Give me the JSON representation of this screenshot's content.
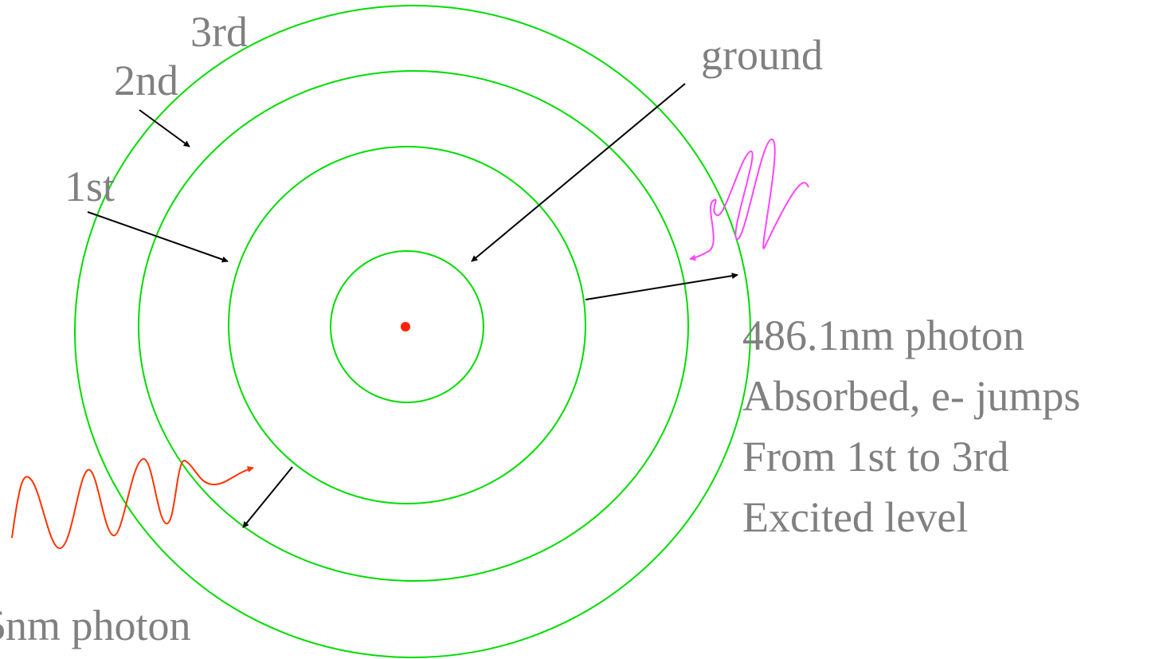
{
  "labels": {
    "third": "3rd",
    "second": "2nd",
    "first": "1st",
    "ground": "ground",
    "bottom_photon": "5nm photon"
  },
  "absorption_text": [
    "486.1nm photon",
    "Absorbed, e- jumps",
    "From 1st to 3rd",
    "Excited level"
  ],
  "colors": {
    "orbit": "#00dd00",
    "nucleus": "#ff2200",
    "emitted_photon": "#ff3300",
    "absorbed_photon": "#ff44ff",
    "arrow": "#000000",
    "text": "#808080"
  }
}
